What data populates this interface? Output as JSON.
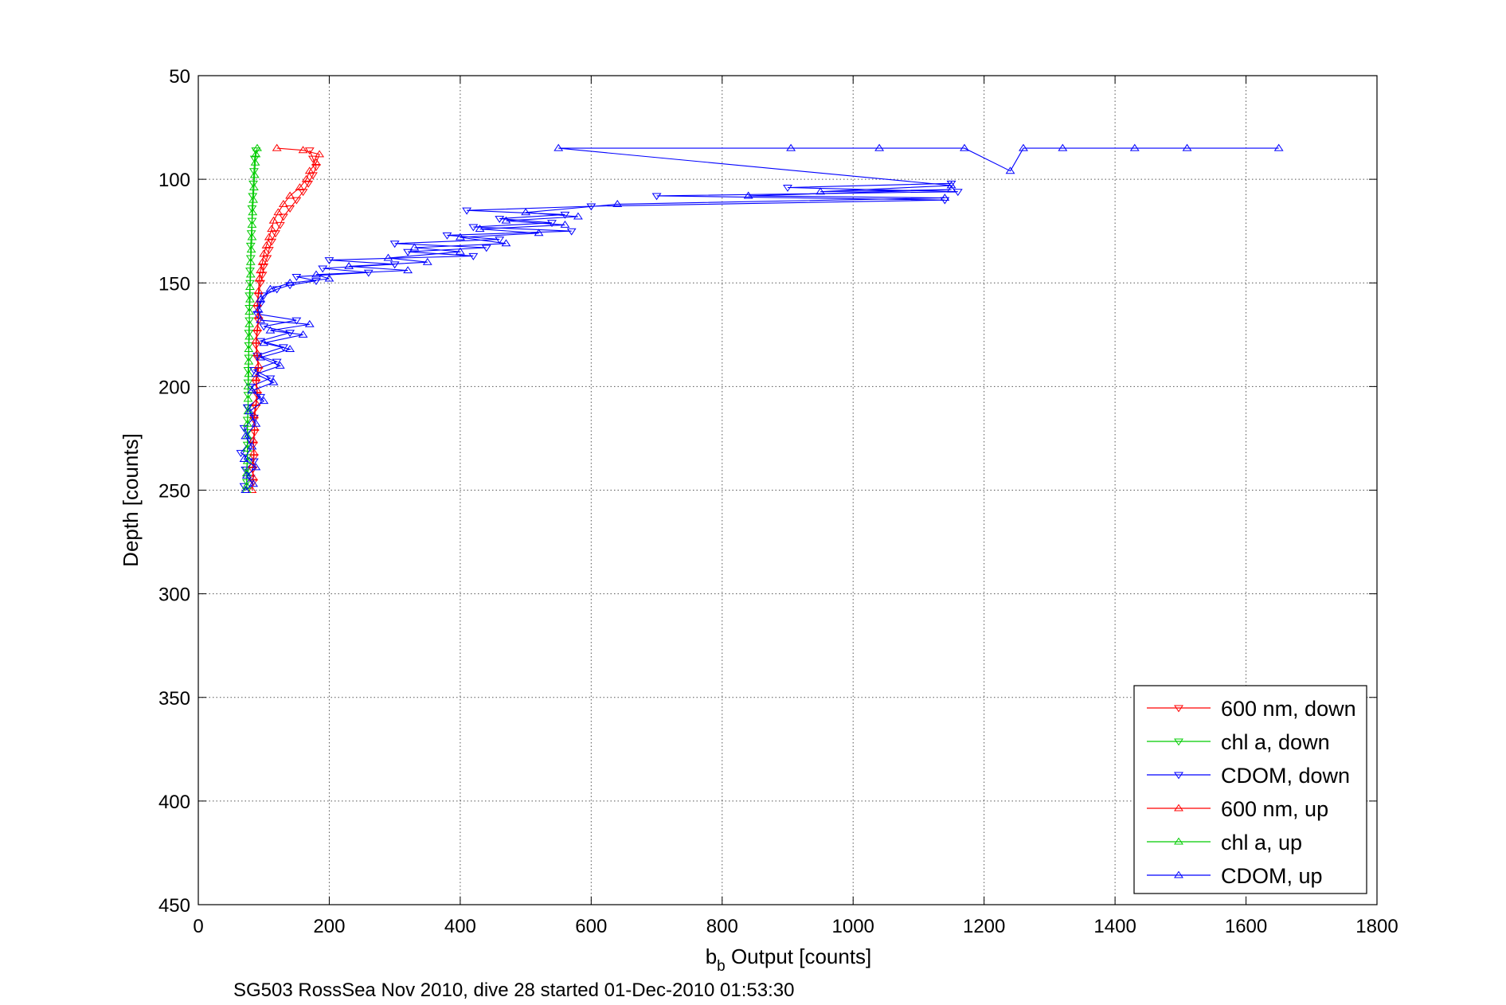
{
  "chart_data": {
    "type": "line",
    "title": "",
    "xlabel_main": "b",
    "xlabel_sub": "b",
    "xlabel_rest": " Output [counts]",
    "ylabel": "Depth [counts]",
    "footer": "SG503 RossSea Nov 2010, dive 28 started 01-Dec-2010 01:53:30",
    "xlim": [
      0,
      1800
    ],
    "ylim": [
      50,
      450
    ],
    "y_reversed": true,
    "grid": true,
    "grid_style": "dotted",
    "legend_position": "bottom-right",
    "xticks": [
      "0",
      "200",
      "400",
      "600",
      "800",
      "1000",
      "1200",
      "1400",
      "1600",
      "1800"
    ],
    "yticks": [
      "50",
      "100",
      "150",
      "200",
      "250",
      "300",
      "350",
      "400",
      "450"
    ],
    "series": [
      {
        "name": "600 nm, down",
        "color": "#ff0000",
        "marker": "triangle-down",
        "line": true,
        "points": [
          [
            170,
            86
          ],
          [
            175,
            90
          ],
          [
            180,
            94
          ],
          [
            175,
            98
          ],
          [
            168,
            102
          ],
          [
            160,
            106
          ],
          [
            150,
            110
          ],
          [
            140,
            114
          ],
          [
            130,
            118
          ],
          [
            125,
            122
          ],
          [
            118,
            126
          ],
          [
            112,
            130
          ],
          [
            108,
            134
          ],
          [
            105,
            138
          ],
          [
            100,
            142
          ],
          [
            98,
            146
          ],
          [
            95,
            150
          ],
          [
            92,
            156
          ],
          [
            90,
            162
          ],
          [
            92,
            168
          ],
          [
            90,
            174
          ],
          [
            88,
            180
          ],
          [
            90,
            186
          ],
          [
            92,
            192
          ],
          [
            88,
            198
          ],
          [
            90,
            204
          ],
          [
            88,
            210
          ],
          [
            85,
            216
          ],
          [
            86,
            222
          ],
          [
            84,
            228
          ],
          [
            85,
            234
          ],
          [
            83,
            240
          ],
          [
            84,
            246
          ]
        ]
      },
      {
        "name": "chl a, down",
        "color": "#00cc00",
        "marker": "triangle-down",
        "line": true,
        "points": [
          [
            88,
            86
          ],
          [
            86,
            90
          ],
          [
            85,
            96
          ],
          [
            84,
            102
          ],
          [
            83,
            108
          ],
          [
            82,
            114
          ],
          [
            82,
            120
          ],
          [
            81,
            126
          ],
          [
            80,
            132
          ],
          [
            80,
            138
          ],
          [
            79,
            144
          ],
          [
            79,
            150
          ],
          [
            78,
            156
          ],
          [
            78,
            162
          ],
          [
            78,
            168
          ],
          [
            77,
            174
          ],
          [
            77,
            180
          ],
          [
            77,
            186
          ],
          [
            76,
            192
          ],
          [
            76,
            198
          ],
          [
            76,
            204
          ],
          [
            76,
            210
          ],
          [
            75,
            216
          ],
          [
            75,
            222
          ],
          [
            75,
            228
          ],
          [
            75,
            234
          ],
          [
            74,
            240
          ],
          [
            74,
            246
          ]
        ]
      },
      {
        "name": "CDOM, down",
        "color": "#0000ff",
        "marker": "triangle-down",
        "line": true,
        "points": [
          [
            1150,
            102
          ],
          [
            900,
            104
          ],
          [
            1160,
            106
          ],
          [
            700,
            108
          ],
          [
            1140,
            110
          ],
          [
            600,
            113
          ],
          [
            410,
            115
          ],
          [
            560,
            117
          ],
          [
            460,
            119
          ],
          [
            540,
            121
          ],
          [
            420,
            123
          ],
          [
            570,
            125
          ],
          [
            380,
            127
          ],
          [
            460,
            129
          ],
          [
            300,
            131
          ],
          [
            440,
            133
          ],
          [
            320,
            135
          ],
          [
            420,
            137
          ],
          [
            200,
            139
          ],
          [
            300,
            141
          ],
          [
            190,
            143
          ],
          [
            260,
            145
          ],
          [
            150,
            147
          ],
          [
            180,
            149
          ],
          [
            140,
            151
          ],
          [
            120,
            153
          ],
          [
            100,
            156
          ],
          [
            95,
            160
          ],
          [
            90,
            165
          ],
          [
            150,
            168
          ],
          [
            100,
            171
          ],
          [
            140,
            174
          ],
          [
            95,
            178
          ],
          [
            130,
            181
          ],
          [
            90,
            185
          ],
          [
            120,
            188
          ],
          [
            85,
            192
          ],
          [
            110,
            196
          ],
          [
            80,
            200
          ],
          [
            95,
            205
          ],
          [
            75,
            210
          ],
          [
            85,
            215
          ],
          [
            70,
            220
          ],
          [
            80,
            226
          ],
          [
            65,
            232
          ],
          [
            85,
            236
          ],
          [
            72,
            240
          ],
          [
            80,
            244
          ],
          [
            70,
            248
          ]
        ]
      },
      {
        "name": "600 nm, up",
        "color": "#ff0000",
        "marker": "triangle-up",
        "line": true,
        "points": [
          [
            120,
            85
          ],
          [
            160,
            86
          ],
          [
            185,
            88
          ],
          [
            180,
            92
          ],
          [
            170,
            96
          ],
          [
            165,
            100
          ],
          [
            155,
            104
          ],
          [
            140,
            108
          ],
          [
            130,
            112
          ],
          [
            122,
            116
          ],
          [
            115,
            120
          ],
          [
            112,
            124
          ],
          [
            108,
            128
          ],
          [
            104,
            132
          ],
          [
            100,
            136
          ],
          [
            98,
            140
          ],
          [
            95,
            144
          ],
          [
            93,
            148
          ],
          [
            92,
            154
          ],
          [
            90,
            160
          ],
          [
            92,
            166
          ],
          [
            90,
            172
          ],
          [
            88,
            178
          ],
          [
            90,
            184
          ],
          [
            92,
            190
          ],
          [
            88,
            196
          ],
          [
            90,
            202
          ],
          [
            88,
            208
          ],
          [
            85,
            214
          ],
          [
            86,
            220
          ],
          [
            84,
            226
          ],
          [
            85,
            232
          ],
          [
            83,
            238
          ],
          [
            84,
            244
          ],
          [
            82,
            250
          ]
        ]
      },
      {
        "name": "chl a, up",
        "color": "#00cc00",
        "marker": "triangle-up",
        "line": true,
        "points": [
          [
            90,
            85
          ],
          [
            88,
            88
          ],
          [
            87,
            92
          ],
          [
            86,
            98
          ],
          [
            85,
            104
          ],
          [
            84,
            110
          ],
          [
            83,
            116
          ],
          [
            82,
            122
          ],
          [
            82,
            128
          ],
          [
            81,
            134
          ],
          [
            80,
            140
          ],
          [
            80,
            146
          ],
          [
            79,
            152
          ],
          [
            79,
            158
          ],
          [
            78,
            164
          ],
          [
            78,
            170
          ],
          [
            78,
            176
          ],
          [
            77,
            182
          ],
          [
            77,
            188
          ],
          [
            77,
            194
          ],
          [
            76,
            200
          ],
          [
            76,
            206
          ],
          [
            76,
            212
          ],
          [
            75,
            218
          ],
          [
            75,
            224
          ],
          [
            75,
            230
          ],
          [
            75,
            236
          ],
          [
            74,
            242
          ],
          [
            74,
            248
          ],
          [
            74,
            250
          ]
        ]
      },
      {
        "name": "CDOM, up",
        "color": "#0000ff",
        "marker": "triangle-up",
        "line": true,
        "points": [
          [
            1650,
            85
          ],
          [
            1510,
            85
          ],
          [
            1430,
            85
          ],
          [
            1320,
            85
          ],
          [
            1260,
            85
          ],
          [
            1240,
            96
          ],
          [
            1170,
            85
          ],
          [
            1040,
            85
          ],
          [
            905,
            85
          ],
          [
            550,
            85
          ],
          [
            1150,
            103
          ],
          [
            950,
            106
          ],
          [
            1150,
            105
          ],
          [
            840,
            108
          ],
          [
            1140,
            109
          ],
          [
            640,
            112
          ],
          [
            500,
            116
          ],
          [
            580,
            118
          ],
          [
            470,
            120
          ],
          [
            560,
            122
          ],
          [
            430,
            124
          ],
          [
            520,
            126
          ],
          [
            400,
            128
          ],
          [
            470,
            131
          ],
          [
            330,
            133
          ],
          [
            400,
            135
          ],
          [
            290,
            138
          ],
          [
            350,
            140
          ],
          [
            230,
            142
          ],
          [
            320,
            144
          ],
          [
            180,
            146
          ],
          [
            200,
            148
          ],
          [
            140,
            150
          ],
          [
            110,
            153
          ],
          [
            95,
            158
          ],
          [
            92,
            163
          ],
          [
            95,
            168
          ],
          [
            170,
            170
          ],
          [
            110,
            173
          ],
          [
            160,
            175
          ],
          [
            100,
            179
          ],
          [
            140,
            182
          ],
          [
            95,
            186
          ],
          [
            125,
            190
          ],
          [
            88,
            194
          ],
          [
            115,
            198
          ],
          [
            82,
            202
          ],
          [
            100,
            207
          ],
          [
            78,
            212
          ],
          [
            88,
            218
          ],
          [
            72,
            224
          ],
          [
            82,
            229
          ],
          [
            70,
            235
          ],
          [
            88,
            239
          ],
          [
            74,
            243
          ],
          [
            84,
            247
          ],
          [
            72,
            250
          ]
        ]
      }
    ]
  }
}
